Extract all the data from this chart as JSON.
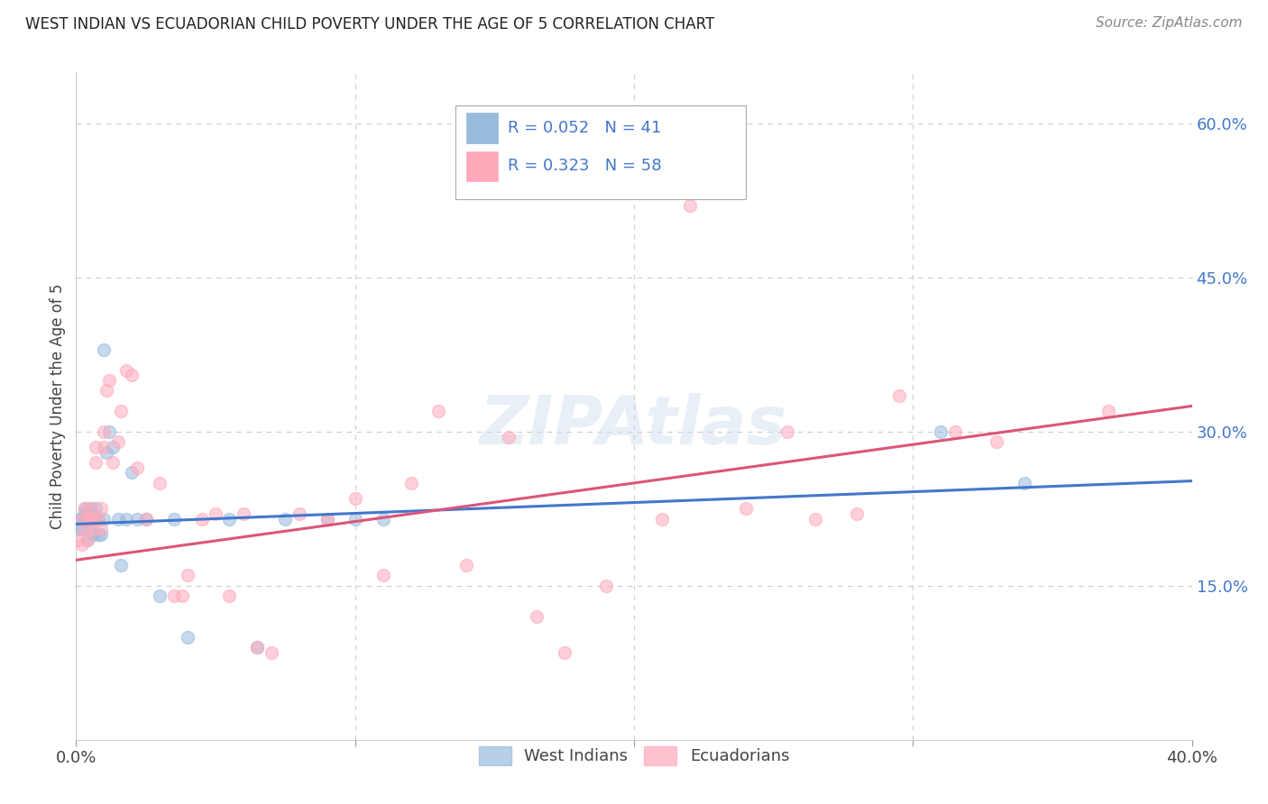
{
  "title": "WEST INDIAN VS ECUADORIAN CHILD POVERTY UNDER THE AGE OF 5 CORRELATION CHART",
  "source": "Source: ZipAtlas.com",
  "ylabel": "Child Poverty Under the Age of 5",
  "xlim": [
    0.0,
    0.4
  ],
  "ylim": [
    0.0,
    0.65
  ],
  "yticks_right": [
    0.15,
    0.3,
    0.45,
    0.6
  ],
  "ytick_right_labels": [
    "15.0%",
    "30.0%",
    "45.0%",
    "60.0%"
  ],
  "west_indian_color": "#99bbdd",
  "ecuadorian_color": "#ffaabb",
  "west_indian_line_color": "#4477cc",
  "ecuadorian_line_color": "#dd5577",
  "legend_color": "#4477cc",
  "background_color": "#ffffff",
  "grid_color": "#cccccc",
  "marker_size": 100,
  "marker_alpha": 0.55,
  "watermark": "ZIPAtlas",
  "legend_R_west": "0.052",
  "legend_N_west": "41",
  "legend_R_ecu": "0.323",
  "legend_N_ecu": "58",
  "west_indian_x": [
    0.001,
    0.001,
    0.002,
    0.002,
    0.003,
    0.003,
    0.003,
    0.004,
    0.004,
    0.005,
    0.005,
    0.005,
    0.006,
    0.006,
    0.007,
    0.007,
    0.008,
    0.008,
    0.009,
    0.01,
    0.01,
    0.011,
    0.012,
    0.013,
    0.015,
    0.016,
    0.018,
    0.02,
    0.022,
    0.025,
    0.03,
    0.035,
    0.04,
    0.055,
    0.065,
    0.075,
    0.09,
    0.1,
    0.11,
    0.31,
    0.34
  ],
  "west_indian_y": [
    0.205,
    0.215,
    0.205,
    0.215,
    0.225,
    0.215,
    0.22,
    0.195,
    0.22,
    0.215,
    0.225,
    0.21,
    0.2,
    0.22,
    0.215,
    0.225,
    0.2,
    0.215,
    0.2,
    0.215,
    0.38,
    0.28,
    0.3,
    0.285,
    0.215,
    0.17,
    0.215,
    0.26,
    0.215,
    0.215,
    0.14,
    0.215,
    0.1,
    0.215,
    0.09,
    0.215,
    0.215,
    0.215,
    0.215,
    0.3,
    0.25
  ],
  "ecuadorian_x": [
    0.001,
    0.002,
    0.002,
    0.003,
    0.003,
    0.004,
    0.004,
    0.005,
    0.005,
    0.006,
    0.006,
    0.007,
    0.007,
    0.008,
    0.009,
    0.009,
    0.01,
    0.01,
    0.011,
    0.012,
    0.013,
    0.015,
    0.016,
    0.018,
    0.02,
    0.022,
    0.025,
    0.03,
    0.035,
    0.038,
    0.04,
    0.045,
    0.05,
    0.055,
    0.06,
    0.065,
    0.07,
    0.08,
    0.09,
    0.1,
    0.11,
    0.12,
    0.13,
    0.14,
    0.155,
    0.165,
    0.175,
    0.19,
    0.21,
    0.22,
    0.24,
    0.255,
    0.265,
    0.28,
    0.295,
    0.315,
    0.33,
    0.37
  ],
  "ecuadorian_y": [
    0.195,
    0.19,
    0.215,
    0.205,
    0.225,
    0.195,
    0.215,
    0.215,
    0.225,
    0.215,
    0.205,
    0.27,
    0.285,
    0.215,
    0.205,
    0.225,
    0.285,
    0.3,
    0.34,
    0.35,
    0.27,
    0.29,
    0.32,
    0.36,
    0.355,
    0.265,
    0.215,
    0.25,
    0.14,
    0.14,
    0.16,
    0.215,
    0.22,
    0.14,
    0.22,
    0.09,
    0.085,
    0.22,
    0.215,
    0.235,
    0.16,
    0.25,
    0.32,
    0.17,
    0.295,
    0.12,
    0.085,
    0.15,
    0.215,
    0.52,
    0.225,
    0.3,
    0.215,
    0.22,
    0.335,
    0.3,
    0.29,
    0.32
  ]
}
